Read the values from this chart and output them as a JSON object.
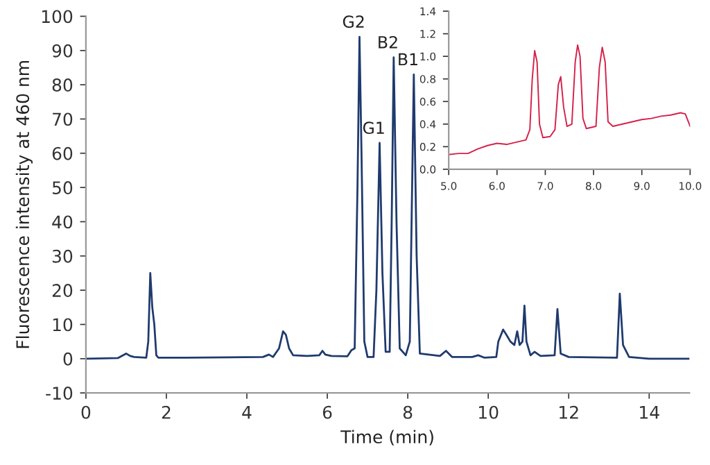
{
  "chart_data": [
    {
      "type": "line",
      "xlabel": "Time (min)",
      "ylabel": "Fluorescence intensity at 460 nm",
      "xlim": [
        0,
        15
      ],
      "ylim": [
        -10,
        100
      ],
      "xticks": [
        0,
        2,
        4,
        6,
        8,
        10,
        12,
        14
      ],
      "yticks": [
        -10,
        0,
        10,
        20,
        30,
        40,
        50,
        60,
        70,
        80,
        90,
        100
      ],
      "grid": false,
      "series": [
        {
          "color": "#1f3a6e",
          "x": [
            0,
            0.8,
            1.0,
            1.1,
            1.2,
            1.5,
            1.55,
            1.6,
            1.65,
            1.7,
            1.75,
            1.8,
            2.5,
            3.5,
            4.4,
            4.55,
            4.65,
            4.8,
            4.9,
            4.97,
            5.05,
            5.15,
            5.5,
            5.8,
            5.88,
            5.95,
            6.1,
            6.5,
            6.6,
            6.68,
            6.75,
            6.8,
            6.85,
            6.92,
            7.0,
            7.15,
            7.22,
            7.3,
            7.37,
            7.45,
            7.55,
            7.6,
            7.65,
            7.72,
            7.8,
            7.95,
            8.05,
            8.15,
            8.22,
            8.3,
            8.8,
            8.95,
            9.1,
            9.6,
            9.75,
            9.9,
            10.2,
            10.25,
            10.37,
            10.45,
            10.55,
            10.65,
            10.72,
            10.78,
            10.85,
            10.9,
            10.95,
            11.05,
            11.15,
            11.3,
            11.65,
            11.72,
            11.8,
            12.0,
            13.2,
            13.27,
            13.35,
            13.5,
            14,
            15
          ],
          "values": [
            0,
            0.2,
            1.5,
            0.8,
            0.5,
            0.3,
            5,
            25,
            15,
            10,
            1,
            0.3,
            0.3,
            0.4,
            0.5,
            1.2,
            0.5,
            3,
            8,
            7,
            3,
            1,
            0.8,
            1,
            2.3,
            1.2,
            0.8,
            0.7,
            2.5,
            3,
            50,
            94,
            60,
            5,
            0.5,
            0.5,
            20,
            63,
            25,
            2,
            2,
            40,
            88,
            40,
            3,
            1,
            5,
            83,
            30,
            1.5,
            0.8,
            2.3,
            0.5,
            0.5,
            1,
            0.3,
            0.5,
            5,
            8.5,
            7,
            5,
            4,
            8,
            4,
            5,
            15.5,
            5,
            1,
            2,
            0.8,
            1,
            14.5,
            1.5,
            0.5,
            0.3,
            19,
            4,
            0.5,
            0,
            0
          ]
        }
      ],
      "annotations": [
        {
          "text": "G2",
          "x": 6.8,
          "y": 94
        },
        {
          "text": "G1",
          "x": 7.3,
          "y": 63
        },
        {
          "text": "B2",
          "x": 7.65,
          "y": 88
        },
        {
          "text": "B1",
          "x": 8.15,
          "y": 83
        }
      ]
    },
    {
      "type": "line",
      "xlim": [
        5,
        10
      ],
      "ylim": [
        0,
        1.4
      ],
      "xticks": [
        {
          "value": 5,
          "label": "5.0"
        },
        {
          "value": 6,
          "label": "6.0"
        },
        {
          "value": 7,
          "label": "7.0"
        },
        {
          "value": 8,
          "label": "8.0"
        },
        {
          "value": 9,
          "label": "9.0"
        },
        {
          "value": 10,
          "label": "10.0"
        }
      ],
      "yticks": [
        {
          "value": 0,
          "label": "0.0"
        },
        {
          "value": 0.2,
          "label": "0.2"
        },
        {
          "value": 0.4,
          "label": "0.4"
        },
        {
          "value": 0.6,
          "label": "0.6"
        },
        {
          "value": 0.8,
          "label": "0.8"
        },
        {
          "value": 1.0,
          "label": "1.0"
        },
        {
          "value": 1.2,
          "label": "1.2"
        },
        {
          "value": 1.4,
          "label": "1.4"
        }
      ],
      "grid": false,
      "series": [
        {
          "color": "#d6204a",
          "x": [
            5.0,
            5.2,
            5.4,
            5.6,
            5.8,
            6.0,
            6.2,
            6.4,
            6.6,
            6.68,
            6.73,
            6.78,
            6.83,
            6.88,
            6.95,
            7.1,
            7.2,
            7.27,
            7.32,
            7.38,
            7.45,
            7.55,
            7.62,
            7.67,
            7.72,
            7.78,
            7.85,
            8.05,
            8.12,
            8.18,
            8.24,
            8.3,
            8.4,
            8.6,
            8.8,
            9.0,
            9.2,
            9.4,
            9.6,
            9.8,
            9.9,
            10.0
          ],
          "values": [
            0.13,
            0.14,
            0.14,
            0.18,
            0.21,
            0.23,
            0.22,
            0.24,
            0.26,
            0.35,
            0.8,
            1.05,
            0.95,
            0.4,
            0.28,
            0.29,
            0.35,
            0.75,
            0.82,
            0.55,
            0.38,
            0.4,
            0.95,
            1.1,
            1.0,
            0.45,
            0.36,
            0.38,
            0.9,
            1.08,
            0.95,
            0.42,
            0.38,
            0.4,
            0.42,
            0.44,
            0.45,
            0.47,
            0.48,
            0.5,
            0.49,
            0.38
          ]
        }
      ]
    }
  ]
}
